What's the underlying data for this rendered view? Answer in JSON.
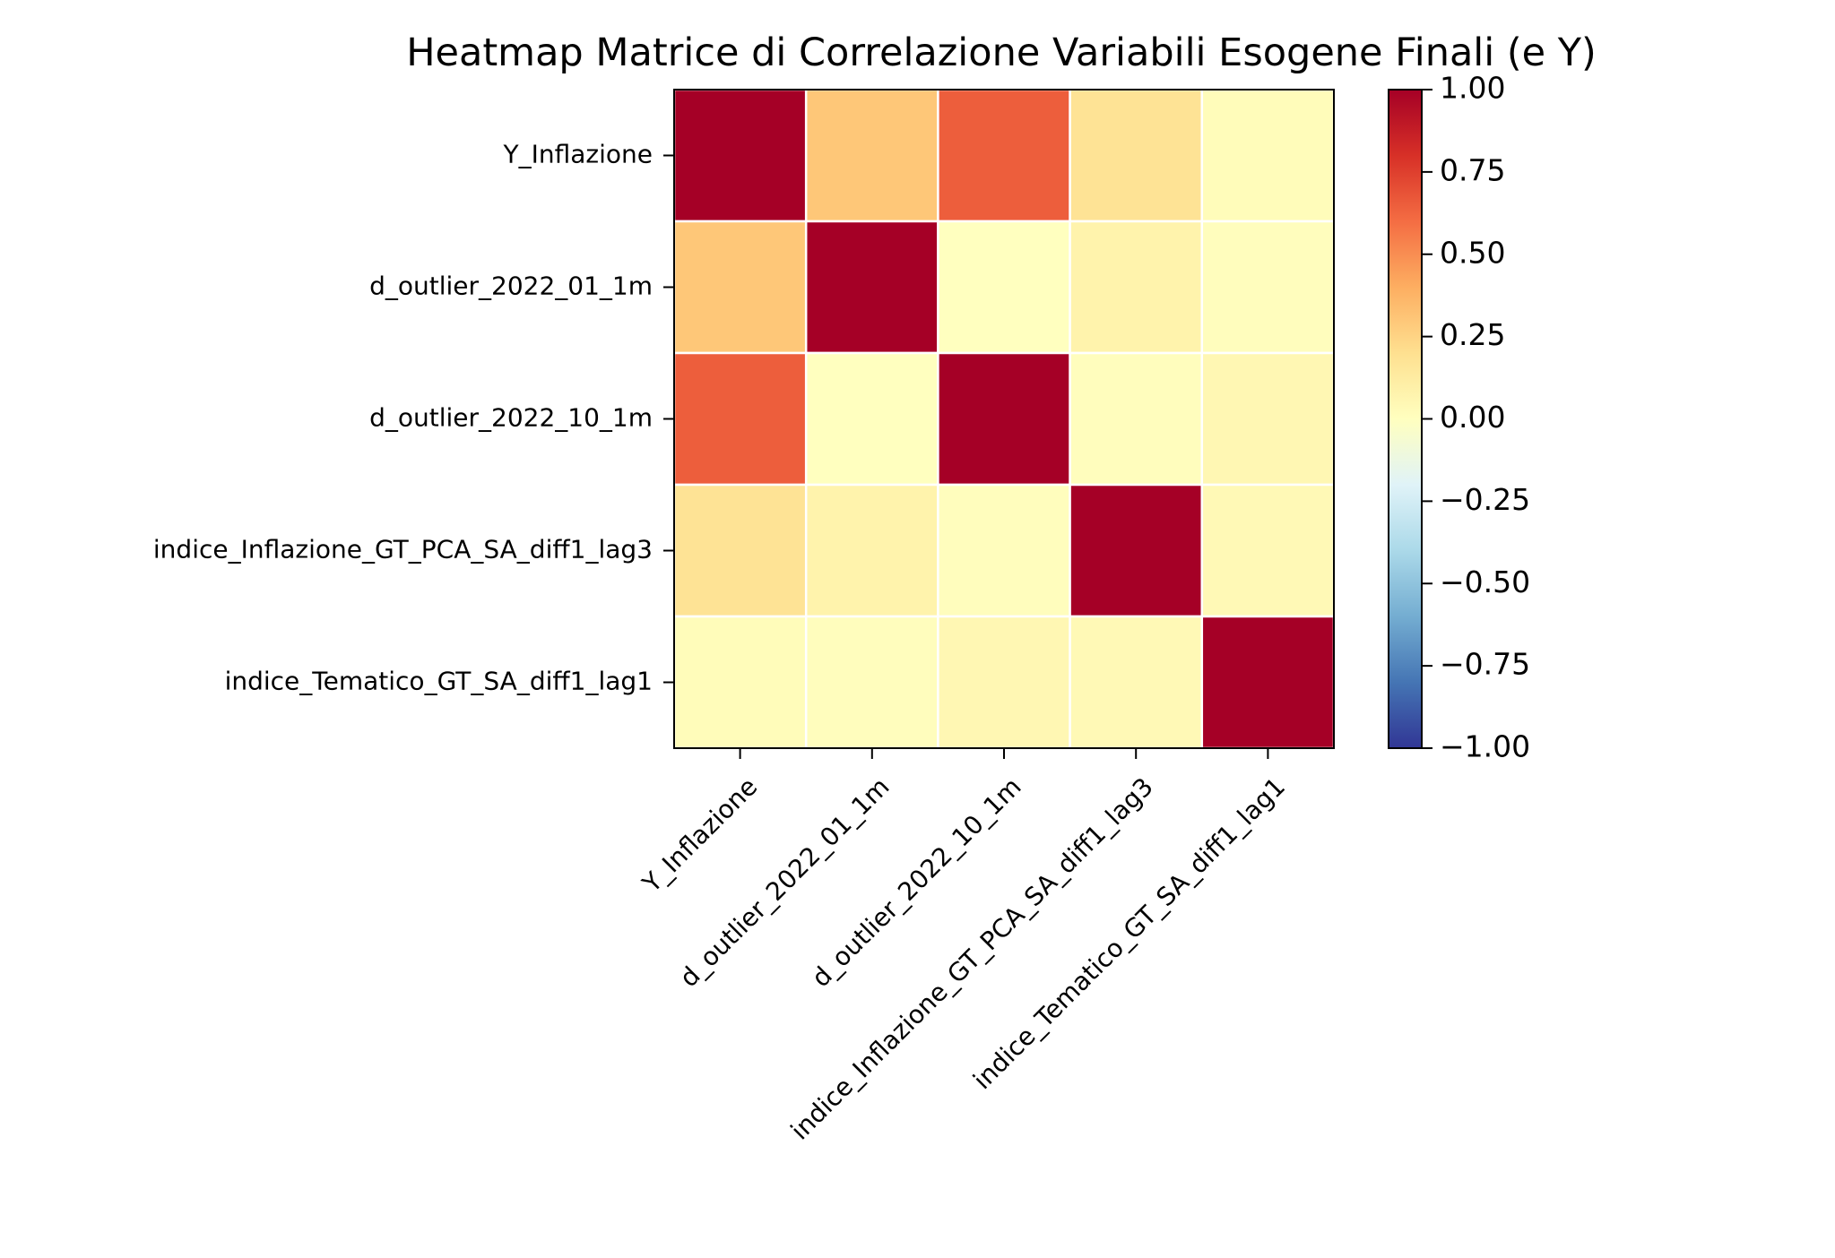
{
  "chart_data": {
    "type": "heatmap",
    "title": "Heatmap Matrice di Correlazione Variabili Esogene Finali (e Y)",
    "xlabel": "",
    "ylabel": "",
    "rows": [
      "Y_Inflazione",
      "d_outlier_2022_01_1m",
      "d_outlier_2022_10_1m",
      "indice_Inflazione_GT_PCA_SA_diff1_lag3",
      "indice_Tematico_GT_SA_diff1_lag1"
    ],
    "columns": [
      "Y_Inflazione",
      "d_outlier_2022_01_1m",
      "d_outlier_2022_10_1m",
      "indice_Inflazione_GT_PCA_SA_diff1_lag3",
      "indice_Tematico_GT_SA_diff1_lag1"
    ],
    "values": [
      [
        1.0,
        0.3,
        0.65,
        0.18,
        0.02
      ],
      [
        0.3,
        1.0,
        0.0,
        0.08,
        0.01
      ],
      [
        0.65,
        0.0,
        1.0,
        0.01,
        0.05
      ],
      [
        0.18,
        0.08,
        0.01,
        1.0,
        0.04
      ],
      [
        0.02,
        0.01,
        0.05,
        0.04,
        1.0
      ]
    ],
    "colorscale": "RdYlBu_r",
    "vmin": -1.0,
    "vmax": 1.0,
    "colorbar_ticks": [
      "1.00",
      "0.75",
      "0.50",
      "0.25",
      "0.00",
      "−0.25",
      "−0.50",
      "−0.75",
      "−1.00"
    ],
    "grid": true,
    "cell_border_color": "#ffffff"
  }
}
